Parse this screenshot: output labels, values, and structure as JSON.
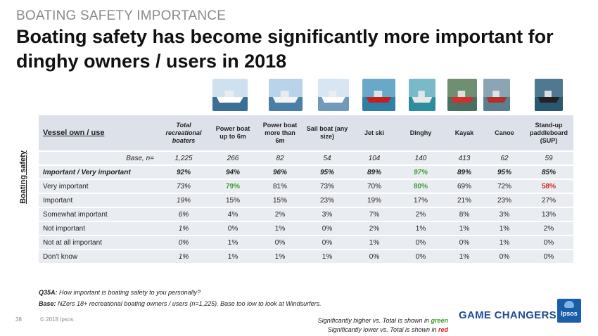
{
  "kicker": "BOATING SAFETY IMPORTANCE",
  "title": "Boating safety has become significantly more important for dinghy owners / users in 2018",
  "side_label": "Boating safety",
  "table": {
    "header": [
      "Vessel own / use",
      "Total recreational boaters",
      "Power boat up to 6m",
      "Power boat more than 6m",
      "Sail boat (any size)",
      "Jet ski",
      "Dinghy",
      "Kayak",
      "Canoe",
      "Stand-up paddleboard (SUP)"
    ],
    "rows": [
      {
        "label": "Base, n=",
        "cells": [
          {
            "v": "1,225"
          },
          {
            "v": "266"
          },
          {
            "v": "82"
          },
          {
            "v": "54"
          },
          {
            "v": "104"
          },
          {
            "v": "140"
          },
          {
            "v": "413"
          },
          {
            "v": "62"
          },
          {
            "v": "59"
          }
        ]
      },
      {
        "label": "Important / Very important",
        "cells": [
          {
            "v": "92%"
          },
          {
            "v": "94%"
          },
          {
            "v": "96%"
          },
          {
            "v": "95%"
          },
          {
            "v": "89%"
          },
          {
            "v": "97%",
            "sig": "green"
          },
          {
            "v": "89%"
          },
          {
            "v": "95%"
          },
          {
            "v": "85%"
          }
        ]
      },
      {
        "label": "Very important",
        "cells": [
          {
            "v": "73%"
          },
          {
            "v": "79%",
            "sig": "green"
          },
          {
            "v": "81%"
          },
          {
            "v": "73%"
          },
          {
            "v": "70%"
          },
          {
            "v": "80%",
            "sig": "green"
          },
          {
            "v": "69%"
          },
          {
            "v": "72%"
          },
          {
            "v": "58%",
            "sig": "red"
          }
        ]
      },
      {
        "label": "Important",
        "cells": [
          {
            "v": "19%"
          },
          {
            "v": "15%"
          },
          {
            "v": "15%"
          },
          {
            "v": "23%"
          },
          {
            "v": "19%"
          },
          {
            "v": "17%"
          },
          {
            "v": "21%"
          },
          {
            "v": "23%"
          },
          {
            "v": "27%"
          }
        ]
      },
      {
        "label": "Somewhat important",
        "cells": [
          {
            "v": "6%"
          },
          {
            "v": "4%"
          },
          {
            "v": "2%"
          },
          {
            "v": "3%"
          },
          {
            "v": "7%"
          },
          {
            "v": "2%"
          },
          {
            "v": "8%"
          },
          {
            "v": "3%"
          },
          {
            "v": "13%"
          }
        ]
      },
      {
        "label": "Not important",
        "cells": [
          {
            "v": "1%"
          },
          {
            "v": "0%"
          },
          {
            "v": "1%"
          },
          {
            "v": "0%"
          },
          {
            "v": "2%"
          },
          {
            "v": "1%"
          },
          {
            "v": "1%"
          },
          {
            "v": "1%"
          },
          {
            "v": "2%"
          }
        ]
      },
      {
        "label": "Not at all important",
        "cells": [
          {
            "v": "0%"
          },
          {
            "v": "1%"
          },
          {
            "v": "0%"
          },
          {
            "v": "0%"
          },
          {
            "v": "1%"
          },
          {
            "v": "0%"
          },
          {
            "v": "0%"
          },
          {
            "v": "1%"
          },
          {
            "v": "0%"
          }
        ]
      },
      {
        "label": "Don't know",
        "cells": [
          {
            "v": "1%"
          },
          {
            "v": "1%"
          },
          {
            "v": "1%"
          },
          {
            "v": "1%"
          },
          {
            "v": "0%"
          },
          {
            "v": "0%"
          },
          {
            "v": "1%"
          },
          {
            "v": "0%"
          },
          {
            "v": "0%"
          }
        ]
      }
    ]
  },
  "photos": [
    {
      "name": "power-boat-small-photo",
      "sky": "#cfe0ef",
      "water": "#3a6f96",
      "hull": "#ffffff"
    },
    {
      "name": "power-boat-large-photo",
      "sky": "#b9d3ea",
      "water": "#4a7fa8",
      "hull": "#f4f4f4"
    },
    {
      "name": "sail-boat-photo",
      "sky": "#d7e6f2",
      "water": "#6f9ab9",
      "hull": "#ffffff"
    },
    {
      "name": "jet-ski-photo",
      "sky": "#6aa8c9",
      "water": "#2f7fa6",
      "hull": "#c41f1f"
    },
    {
      "name": "dinghy-photo",
      "sky": "#79b9c8",
      "water": "#2b8e9c",
      "hull": "#e7e7e7"
    },
    {
      "name": "kayak-photo",
      "sky": "#6f8f73",
      "water": "#4a6f63",
      "hull": "#d22f2f"
    },
    {
      "name": "canoe-photo",
      "sky": "#8aa6b5",
      "water": "#5c7f90",
      "hull": "#b0302a"
    },
    {
      "name": "sup-photo",
      "sky": "#4f7990",
      "water": "#2a5870",
      "hull": "#222222"
    }
  ],
  "question": {
    "label": "Q35A:",
    "text": " How important is boating safety to you personally?"
  },
  "base_note": {
    "label": "Base:",
    "text": " NZers 18+ recreational boating owners / users (n=1,225). Base too low to look at Windsurfers."
  },
  "page_number": "38",
  "copyright": "© 2018 Ipsos.",
  "legend": {
    "higher_prefix": "Significantly higher vs. Total is shown in ",
    "higher_word": "green",
    "lower_prefix": "Significantly lower vs. Total is shown in ",
    "lower_word": "red"
  },
  "tagline": "GAME CHANGERS",
  "logo_text": "Ipsos",
  "colors": {
    "green": "#3f9b2f",
    "red": "#d0231c",
    "header_bg": "#dde2ea",
    "row_bg": "#e9ecf1",
    "brand_blue": "#1f4a9a"
  }
}
